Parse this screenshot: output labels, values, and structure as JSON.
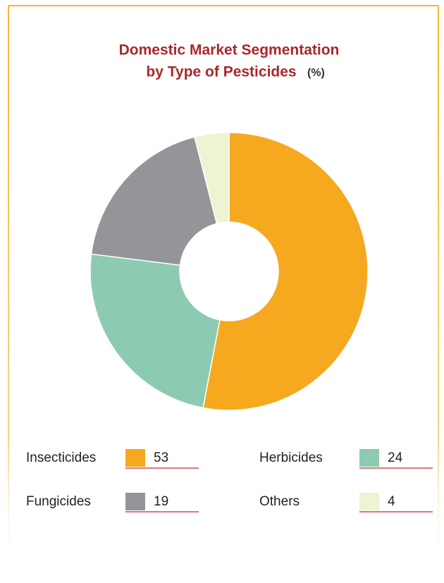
{
  "chart_data": {
    "type": "donut",
    "title_lines": [
      "Domestic Market Segmentation",
      "by Type of Pesticides"
    ],
    "title_unit": "(%)",
    "categories": [
      "Insecticides",
      "Herbicides",
      "Fungicides",
      "Others"
    ],
    "values": [
      53,
      24,
      19,
      4
    ],
    "colors": [
      "#f6a81f",
      "#8ccbb2",
      "#939598",
      "#eff3d1"
    ]
  }
}
